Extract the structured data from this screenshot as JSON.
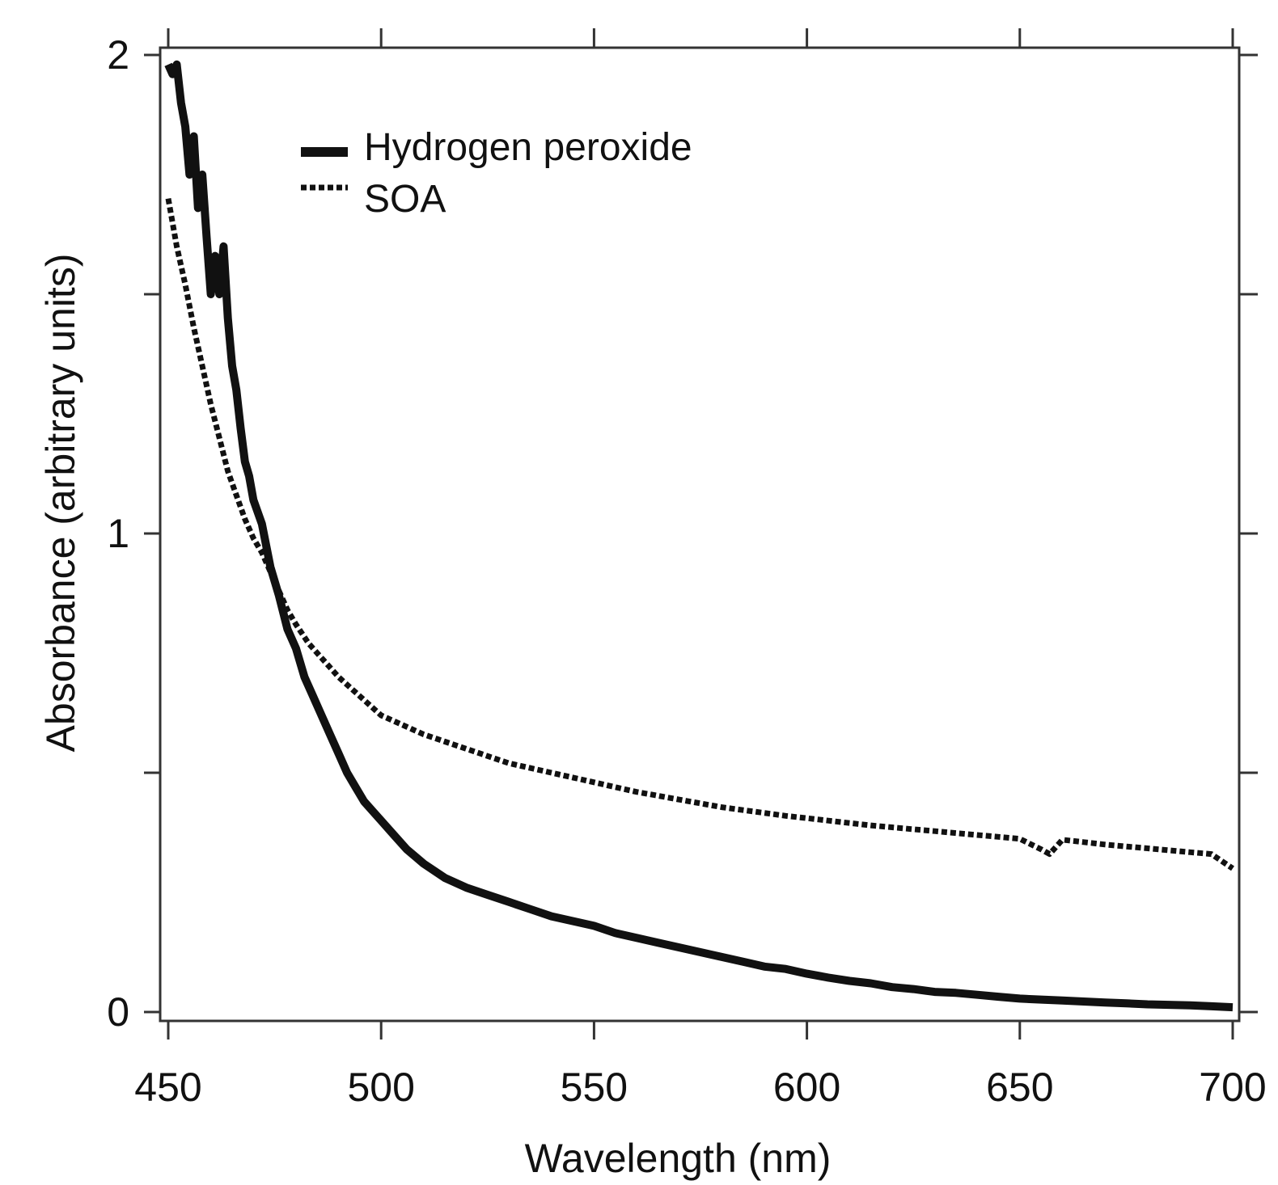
{
  "chart_data": {
    "type": "line",
    "title": "",
    "xlabel": "Wavelength (nm)",
    "ylabel": "Absorbance (arbitrary units)",
    "xlim": [
      450,
      700
    ],
    "ylim": [
      0,
      2
    ],
    "xticks": [
      450,
      500,
      550,
      600,
      650,
      700
    ],
    "yticks": [
      0,
      0.5,
      1,
      1.5,
      2
    ],
    "xtick_labels": [
      "450",
      "500",
      "550",
      "600",
      "650",
      "700"
    ],
    "ytick_labels": [
      "0",
      "",
      "1",
      "",
      "2"
    ],
    "grid": false,
    "legend_position": "top-left",
    "series": [
      {
        "name": "Hydrogen peroxide",
        "style": "solid",
        "color": "#111111",
        "x": [
          450,
          451,
          452,
          453,
          454,
          455,
          456,
          457,
          458,
          459,
          460,
          461,
          462,
          463,
          464,
          465,
          466,
          467,
          468,
          469,
          470,
          472,
          474,
          476,
          478,
          480,
          482,
          484,
          486,
          488,
          490,
          492,
          494,
          496,
          498,
          500,
          503,
          506,
          510,
          515,
          520,
          525,
          530,
          535,
          540,
          545,
          550,
          555,
          560,
          565,
          570,
          575,
          580,
          585,
          590,
          595,
          600,
          605,
          610,
          615,
          620,
          625,
          630,
          635,
          640,
          645,
          650,
          655,
          660,
          665,
          670,
          675,
          680,
          685,
          690,
          695,
          700
        ],
        "y": [
          1.98,
          1.96,
          1.98,
          1.9,
          1.85,
          1.75,
          1.83,
          1.68,
          1.75,
          1.62,
          1.5,
          1.58,
          1.5,
          1.6,
          1.45,
          1.35,
          1.3,
          1.22,
          1.15,
          1.12,
          1.07,
          1.02,
          0.93,
          0.87,
          0.8,
          0.76,
          0.7,
          0.66,
          0.62,
          0.58,
          0.54,
          0.5,
          0.47,
          0.44,
          0.42,
          0.4,
          0.37,
          0.34,
          0.31,
          0.28,
          0.26,
          0.245,
          0.23,
          0.215,
          0.2,
          0.19,
          0.18,
          0.165,
          0.155,
          0.145,
          0.135,
          0.125,
          0.115,
          0.105,
          0.095,
          0.09,
          0.08,
          0.072,
          0.065,
          0.06,
          0.052,
          0.048,
          0.042,
          0.04,
          0.036,
          0.032,
          0.028,
          0.026,
          0.024,
          0.022,
          0.02,
          0.018,
          0.016,
          0.015,
          0.014,
          0.012,
          0.01
        ]
      },
      {
        "name": "SOA",
        "style": "dotted",
        "color": "#111111",
        "x": [
          450,
          452,
          454,
          456,
          458,
          460,
          462,
          464,
          466,
          468,
          470,
          472,
          474,
          476,
          478,
          480,
          483,
          486,
          490,
          495,
          500,
          505,
          510,
          515,
          520,
          525,
          530,
          535,
          540,
          545,
          550,
          555,
          560,
          565,
          570,
          575,
          580,
          585,
          590,
          595,
          600,
          605,
          610,
          615,
          620,
          625,
          630,
          635,
          640,
          645,
          650,
          655,
          657,
          660,
          665,
          670,
          675,
          680,
          685,
          690,
          695,
          700
        ],
        "y": [
          1.7,
          1.6,
          1.52,
          1.43,
          1.35,
          1.27,
          1.2,
          1.13,
          1.08,
          1.03,
          0.99,
          0.96,
          0.92,
          0.88,
          0.84,
          0.81,
          0.77,
          0.74,
          0.7,
          0.66,
          0.62,
          0.6,
          0.58,
          0.565,
          0.55,
          0.535,
          0.52,
          0.51,
          0.5,
          0.49,
          0.48,
          0.47,
          0.46,
          0.452,
          0.444,
          0.436,
          0.428,
          0.422,
          0.416,
          0.41,
          0.405,
          0.4,
          0.395,
          0.39,
          0.386,
          0.382,
          0.378,
          0.374,
          0.37,
          0.366,
          0.362,
          0.34,
          0.33,
          0.36,
          0.355,
          0.35,
          0.346,
          0.342,
          0.338,
          0.334,
          0.33,
          0.3
        ]
      }
    ]
  }
}
